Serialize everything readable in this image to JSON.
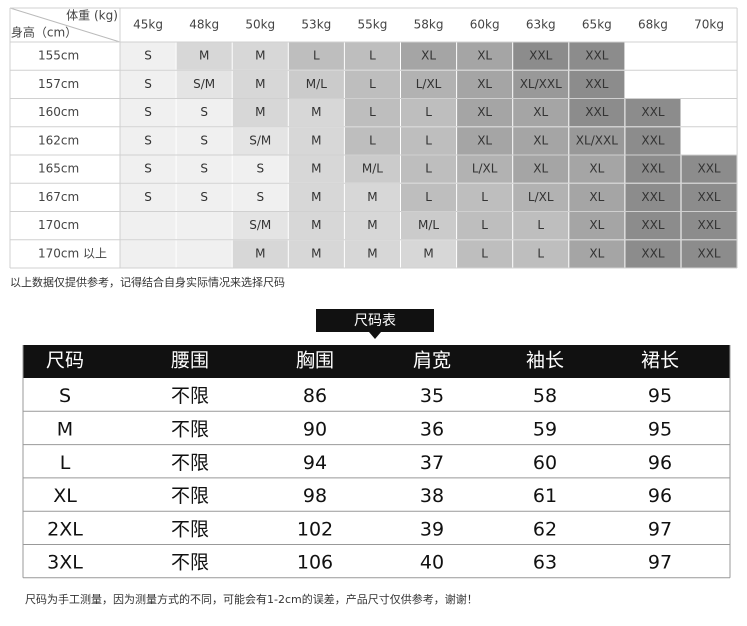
{
  "size_guide": {
    "weight_header": "体重 (kg)",
    "height_header": "身高（cm）",
    "weights": [
      "45kg",
      "48kg",
      "50kg",
      "53kg",
      "55kg",
      "58kg",
      "60kg",
      "63kg",
      "65kg",
      "68kg",
      "70kg"
    ],
    "rows": [
      {
        "height": "155cm",
        "sizes": [
          "S",
          "M",
          "M",
          "L",
          "L",
          "XL",
          "XL",
          "XXL",
          "XXL",
          null,
          null
        ]
      },
      {
        "height": "157cm",
        "sizes": [
          "S",
          "S/M",
          "M",
          "M/L",
          "L",
          "L/XL",
          "XL",
          "XL/XXL",
          "XXL",
          null,
          null
        ]
      },
      {
        "height": "160cm",
        "sizes": [
          "S",
          "S",
          "M",
          "M",
          "L",
          "L",
          "XL",
          "XL",
          "XXL",
          "XXL",
          null
        ]
      },
      {
        "height": "162cm",
        "sizes": [
          "S",
          "S",
          "S/M",
          "M",
          "L",
          "L",
          "XL",
          "XL",
          "XL/XXL",
          "XXL",
          null
        ]
      },
      {
        "height": "165cm",
        "sizes": [
          "S",
          "S",
          "S",
          "M",
          "M/L",
          "L",
          "L/XL",
          "XL",
          "XL",
          "XXL",
          "XXL"
        ]
      },
      {
        "height": "167cm",
        "sizes": [
          "S",
          "S",
          "S",
          "M",
          "M",
          "L",
          "L",
          "L/XL",
          "XL",
          "XXL",
          "XXL"
        ]
      },
      {
        "height": "170cm",
        "sizes": [
          null,
          null,
          "S/M",
          "M",
          "M",
          "M/L",
          "L",
          "L",
          "XL",
          "XXL",
          "XXL"
        ]
      },
      {
        "height": "170cm 以上",
        "sizes": [
          null,
          null,
          "M",
          "M",
          "M",
          "M",
          "L",
          "L",
          "XL",
          "XXL",
          "XXL"
        ]
      }
    ],
    "note": "以上数据仅提供参考，记得结合自身实际情况来选择尺码"
  },
  "size_chart": {
    "title": "尺码表",
    "columns": [
      "尺码",
      "腰围",
      "胸围",
      "肩宽",
      "袖长",
      "裙长"
    ],
    "rows": [
      [
        "S",
        "不限",
        86,
        35,
        58,
        95
      ],
      [
        "M",
        "不限",
        90,
        36,
        59,
        95
      ],
      [
        "L",
        "不限",
        94,
        37,
        60,
        96
      ],
      [
        "XL",
        "不限",
        98,
        38,
        61,
        96
      ],
      [
        "2XL",
        "不限",
        102,
        39,
        62,
        97
      ],
      [
        "3XL",
        "不限",
        106,
        40,
        63,
        97
      ]
    ],
    "note": "尺码为手工测量，因为测量方式的不同，可能会有1-2cm的误差，产品尺寸仅供参考，谢谢！"
  }
}
